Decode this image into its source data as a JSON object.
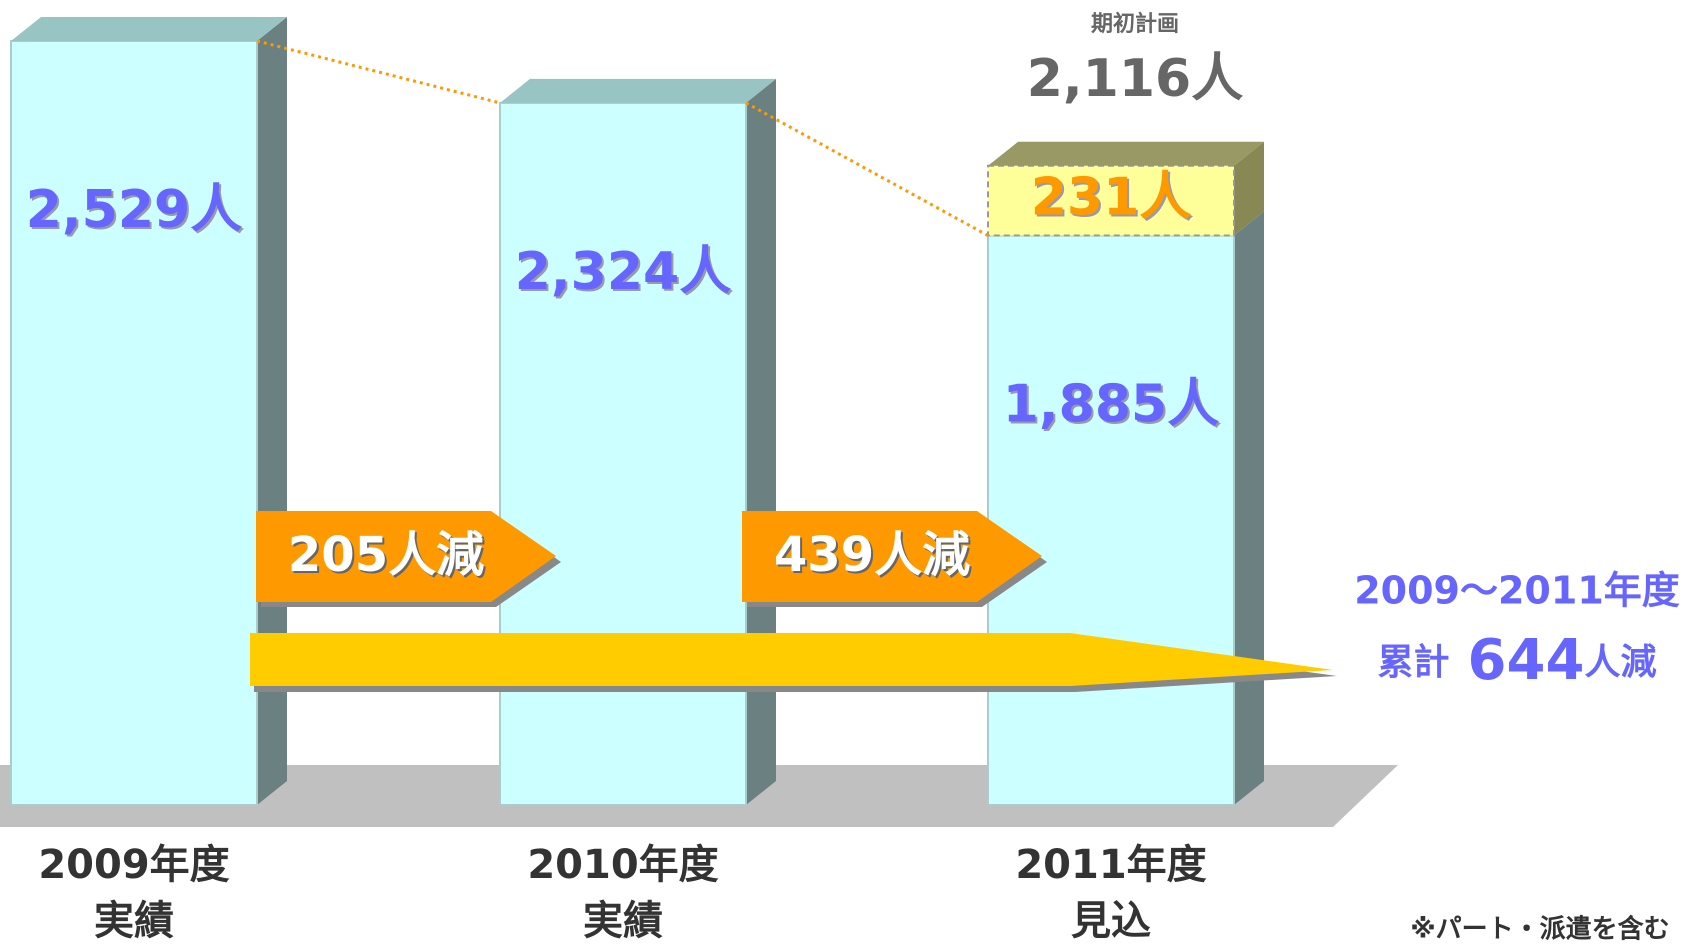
{
  "chart_data": {
    "type": "bar3d_stacked",
    "categories": [
      [
        "2009年度",
        "実績"
      ],
      [
        "2010年度",
        "実績"
      ],
      [
        "2011年度",
        "見込"
      ]
    ],
    "series": [
      {
        "color": "#ccffff",
        "values": [
          2529,
          2324,
          1885
        ],
        "value_labels": [
          "2,529人",
          "2,324人",
          "1,885人"
        ]
      },
      {
        "color": "#ffff99",
        "values": [
          null,
          null,
          231
        ],
        "value_labels": [
          null,
          null,
          "231人"
        ]
      }
    ],
    "plan": {
      "title": "期初計画",
      "value": 2116,
      "label": "2,116人"
    },
    "reductions": [
      {
        "value": 205,
        "label": "205人減"
      },
      {
        "value": 439,
        "label": "439人減"
      }
    ],
    "cumulative": {
      "period": "2009～2011年度",
      "prefix": "累計",
      "value": 644,
      "label": "644",
      "suffix": "人減"
    },
    "footnote": "※パート・派遣を含む"
  }
}
